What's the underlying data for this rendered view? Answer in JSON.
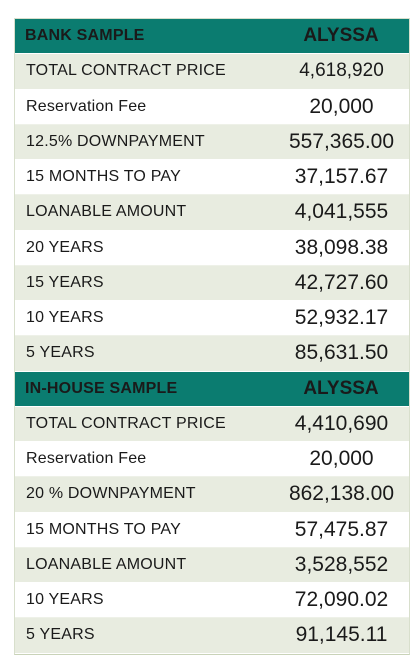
{
  "bank": {
    "title": "BANK SAMPLE",
    "unit": "ALYSSA",
    "rows": [
      {
        "label": "TOTAL  CONTRACT  PRICE",
        "value": "4,618,920"
      },
      {
        "label": "Reservation  Fee",
        "value": "20,000"
      },
      {
        "label": "12.5% DOWNPAYMENT",
        "value": "557,365.00"
      },
      {
        "label": "15 MONTHS TO PAY",
        "value": "37,157.67"
      },
      {
        "label": "LOANABLE AMOUNT",
        "value": "4,041,555"
      },
      {
        "label": "20 YEARS",
        "value": "38,098.38"
      },
      {
        "label": "15 YEARS",
        "value": "42,727.60"
      },
      {
        "label": "10 YEARS",
        "value": "52,932.17"
      },
      {
        "label": "5 YEARS",
        "value": "85,631.50"
      }
    ]
  },
  "inhouse": {
    "title": "IN-HOUSE SAMPLE",
    "unit": "ALYSSA",
    "rows": [
      {
        "label": "TOTAL  CONTRACT  PRICE",
        "value": "4,410,690"
      },
      {
        "label": "Reservation  Fee",
        "value": "20,000"
      },
      {
        "label": "20 % DOWNPAYMENT",
        "value": "862,138.00"
      },
      {
        "label": "15 MONTHS TO PAY",
        "value": "57,475.87"
      },
      {
        "label": "LOANABLE AMOUNT",
        "value": "3,528,552"
      },
      {
        "label": "10 YEARS",
        "value": "72,090.02"
      },
      {
        "label": "5 YEARS",
        "value": "91,145.11"
      }
    ]
  },
  "colors": {
    "header": "#0b7c70",
    "shade": "#e8ece0",
    "plain": "#ffffff"
  }
}
